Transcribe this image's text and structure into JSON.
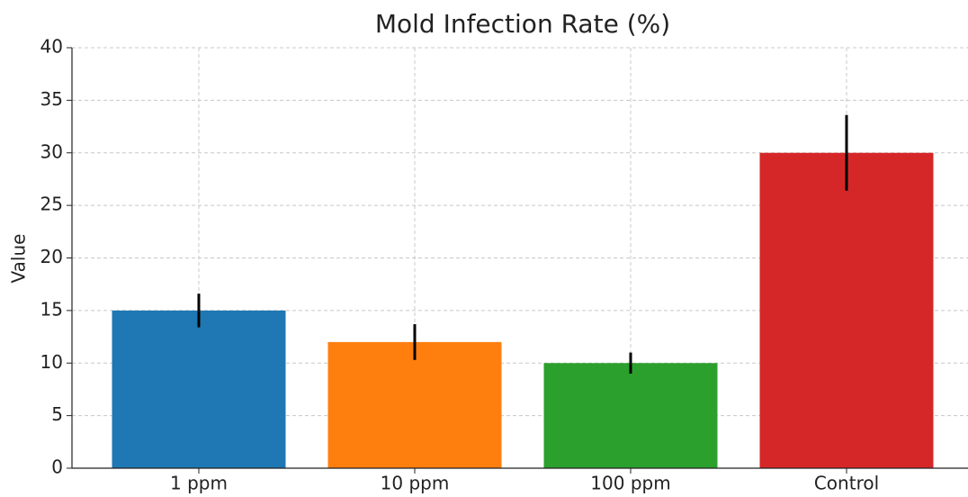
{
  "chart_data": {
    "type": "bar",
    "title": "Mold Infection Rate (%)",
    "ylabel": "Value",
    "categories": [
      "1 ppm",
      "10 ppm",
      "100 ppm",
      "Control"
    ],
    "values": [
      15,
      12,
      10,
      30
    ],
    "errors": [
      1.6,
      1.7,
      1.0,
      3.6
    ],
    "colors": [
      "#1f77b4",
      "#ff7f0e",
      "#2ca02c",
      "#d62728"
    ],
    "ylim": [
      0,
      40
    ],
    "yticks": [
      0,
      5,
      10,
      15,
      20,
      25,
      30,
      35,
      40
    ],
    "grid": true
  }
}
